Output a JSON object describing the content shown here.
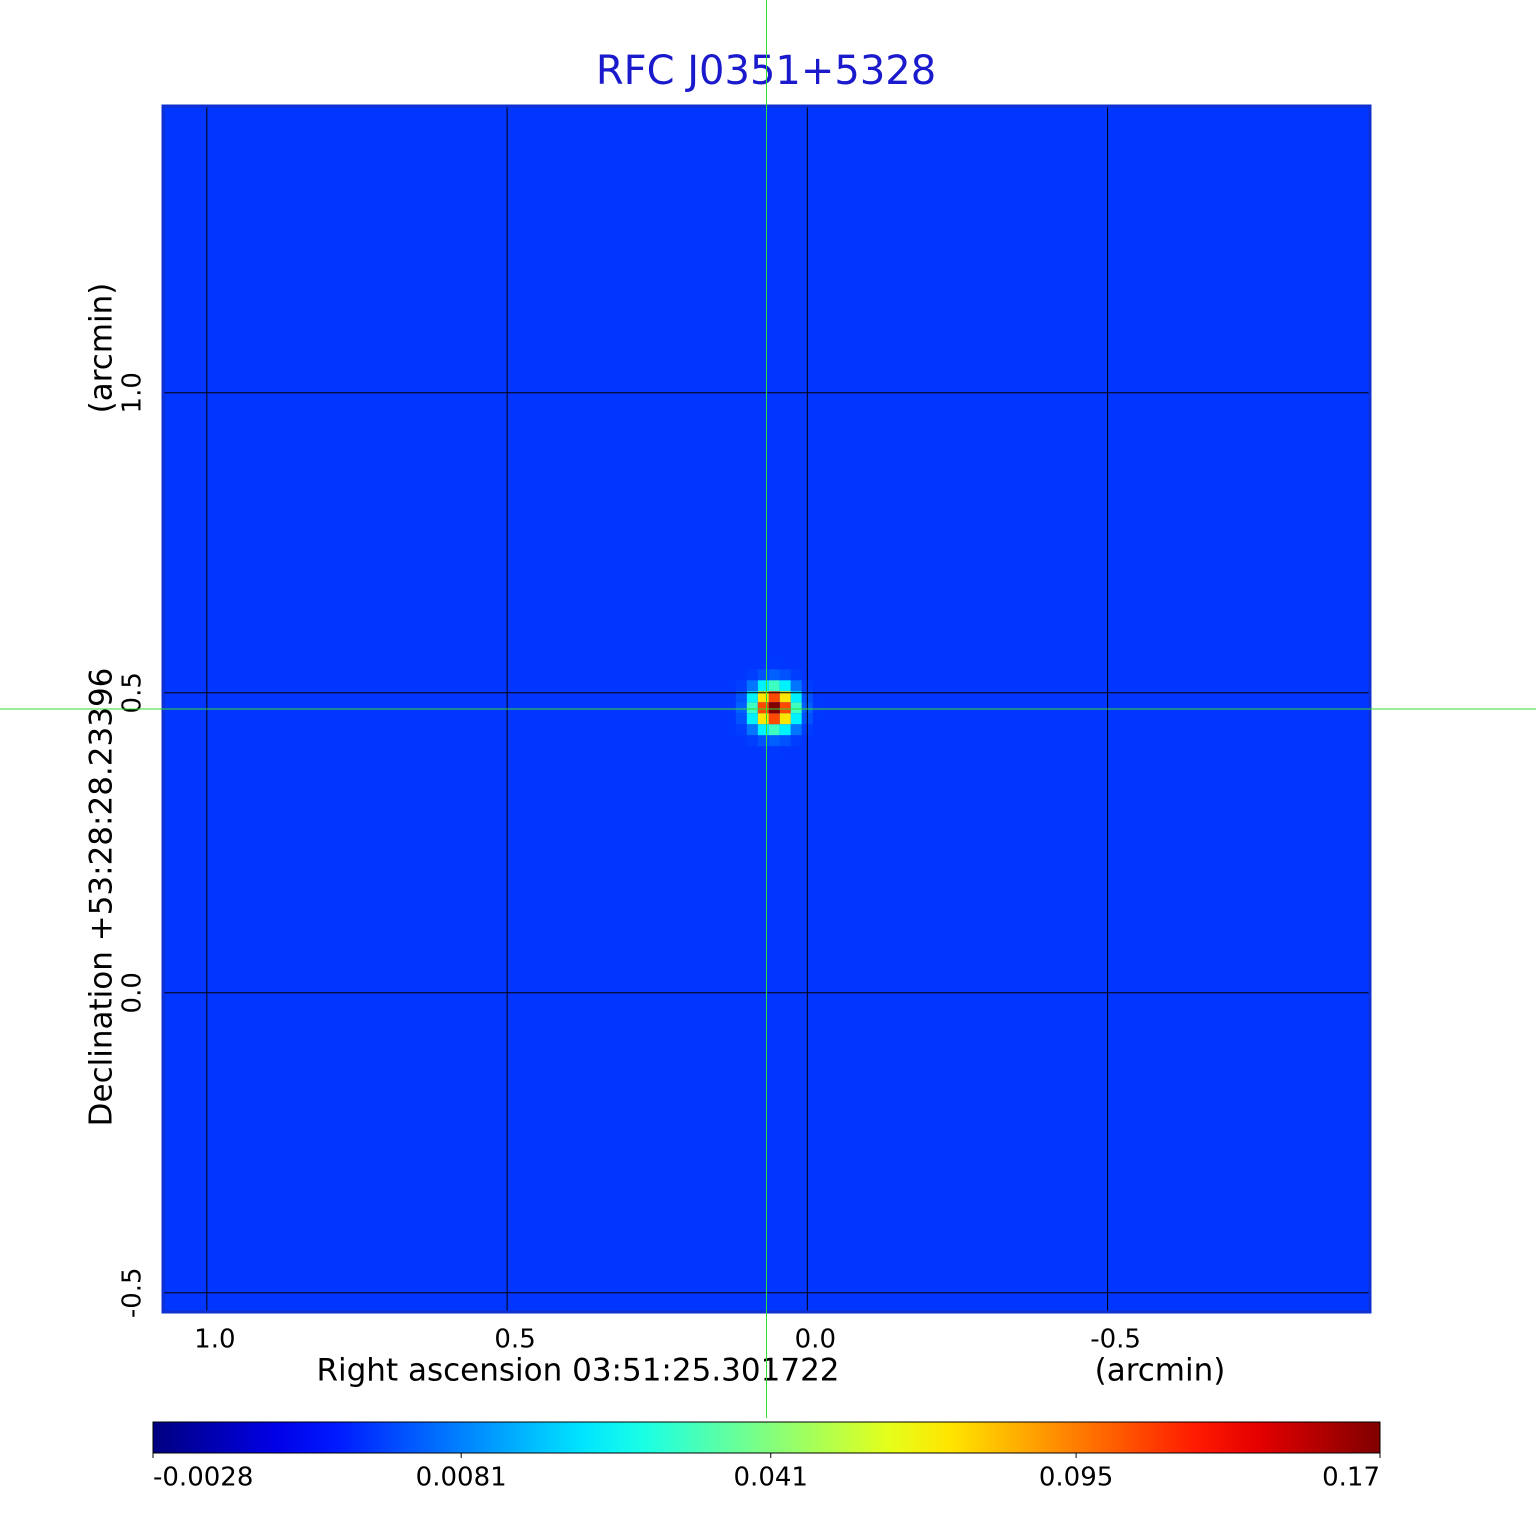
{
  "chart_data": {
    "type": "image",
    "title": "RFC J0351+5328",
    "xlabel": "Right ascension  03:51:25.301722",
    "xunit": "(arcmin)",
    "ylabel": "Declination  +53:28:28.23396",
    "yunit": "(arcmin)",
    "xlim": [
      1.073,
      -0.937
    ],
    "ylim": [
      -0.532,
      1.478
    ],
    "xticks": [
      {
        "value": 1.0,
        "label": "1.0"
      },
      0.5,
      {
        "value": 0.0,
        "label": "0.0"
      },
      -0.5
    ],
    "yticks": [
      -0.5,
      {
        "value": 0.0,
        "label": "0.0"
      },
      0.5,
      {
        "value": 1.0,
        "label": "1.0"
      }
    ],
    "grid": true,
    "colormap": "jet",
    "background": 0.0027,
    "source": {
      "x": 0.055,
      "y": 0.475,
      "peak": 0.17
    },
    "crosshair": {
      "x": 0.068,
      "y": 0.473,
      "color": "#33dd33"
    },
    "colorbar": {
      "lim": [
        -0.0028,
        0.17
      ],
      "scale": "sqrt",
      "ticks": [
        -0.0028,
        0.0081,
        0.041,
        0.095,
        0.17
      ]
    }
  }
}
